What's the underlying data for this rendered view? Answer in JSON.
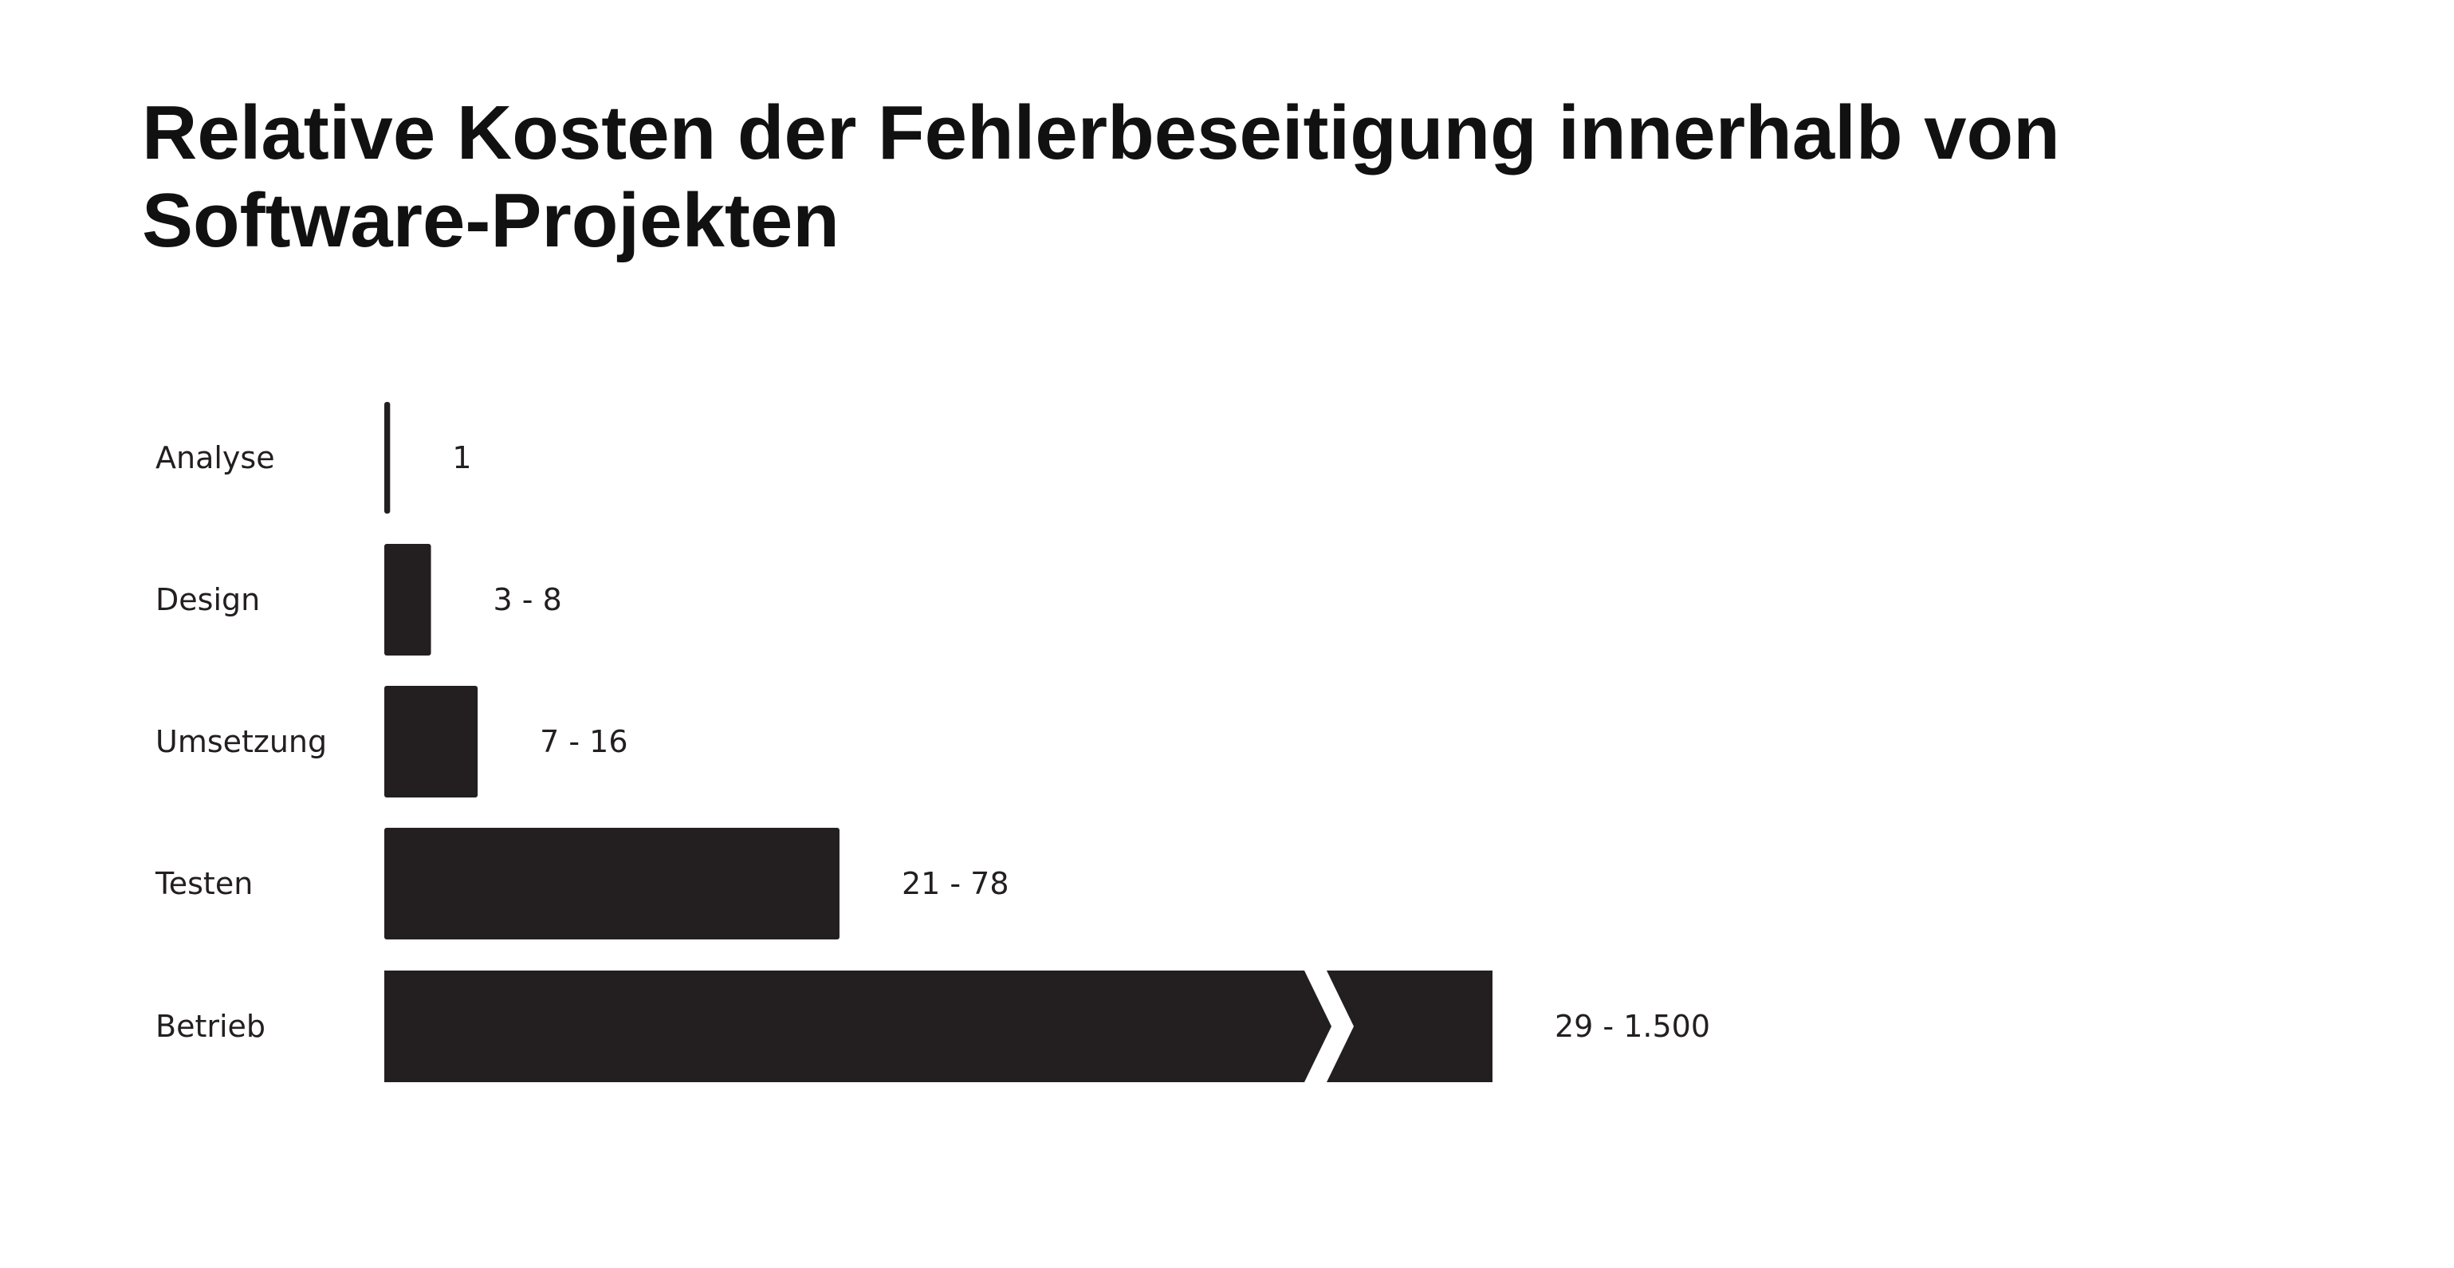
{
  "title": "Relative Kosten der Fehlerbeseitigung innerhalb von Software-Projekten",
  "chart_data": {
    "type": "bar",
    "orientation": "horizontal",
    "categories": [
      "Analyse",
      "Design",
      "Umsetzung",
      "Testen",
      "Betrieb"
    ],
    "value_labels": [
      "1",
      "3 - 8",
      "7 - 16",
      "21 - 78",
      "29 - 1.500"
    ],
    "ranges": [
      [
        1,
        1
      ],
      [
        3,
        8
      ],
      [
        7,
        16
      ],
      [
        21,
        78
      ],
      [
        29,
        1500
      ]
    ],
    "axis_break": [
      false,
      false,
      false,
      false,
      true
    ],
    "bar_color": "#231f20",
    "title": "Relative Kosten der Fehlerbeseitigung innerhalb von Software-Projekten",
    "xlabel": "",
    "ylabel": "",
    "grid": false
  }
}
